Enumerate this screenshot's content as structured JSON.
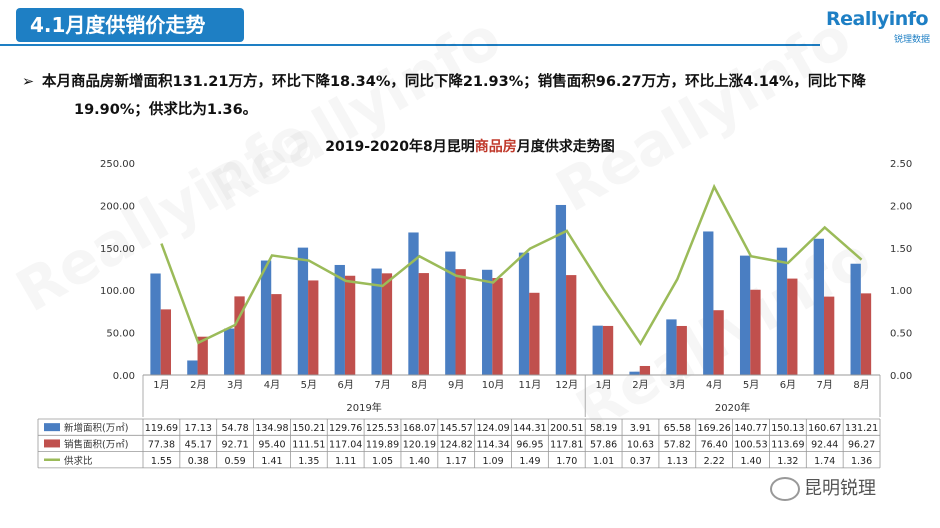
{
  "header": {
    "title": "4.1月度供销价走势"
  },
  "logo": {
    "name": "Reallyinfo",
    "sub": "锐理数据"
  },
  "summary": {
    "line1": "本月商品房新增面积131.21万方，环比下降18.34%，同比下降21.93%；销售面积96.27万方，环比上涨4.14%，同比下降",
    "line2": "19.90%；供求比为1.36。"
  },
  "chart_title": {
    "prefix": "2019-2020年8月昆明",
    "highlight": "商品房",
    "suffix": "月度供求走势图"
  },
  "watermark": "Reallyinfo",
  "wechat_label": "昆明锐理",
  "colors": {
    "supply": "#4a7ec2",
    "sales": "#c0504d",
    "ratio": "#9bbb59",
    "accent": "#1e7fc4"
  },
  "chart_data": {
    "type": "bar",
    "categories": [
      "1月",
      "2月",
      "3月",
      "4月",
      "5月",
      "6月",
      "7月",
      "8月",
      "9月",
      "10月",
      "11月",
      "12月",
      "1月",
      "2月",
      "3月",
      "4月",
      "5月",
      "6月",
      "7月",
      "8月"
    ],
    "groups": [
      {
        "label": "2019年",
        "count": 12
      },
      {
        "label": "2020年",
        "count": 8
      }
    ],
    "series": [
      {
        "name": "新增面积(万㎡)",
        "type": "bar",
        "axis": "left",
        "values": [
          119.69,
          17.13,
          54.78,
          134.98,
          150.21,
          129.76,
          125.53,
          168.07,
          145.57,
          124.09,
          144.31,
          200.51,
          58.19,
          3.91,
          65.58,
          169.26,
          140.77,
          150.13,
          160.67,
          131.21
        ],
        "labels": [
          "119.69",
          "17.13",
          "54.78",
          "134.98",
          "150.21",
          "129.76",
          "125.53",
          "168.07",
          "145.57",
          "124.09",
          "144.31",
          "200.51",
          "58.19",
          "3.91",
          "65.58",
          "169.26",
          "140.77",
          "150.13",
          "160.67",
          "131.21"
        ]
      },
      {
        "name": "销售面积(万㎡)",
        "type": "bar",
        "axis": "left",
        "values": [
          77.38,
          45.17,
          92.71,
          95.4,
          111.51,
          117.04,
          119.89,
          120.19,
          124.82,
          114.34,
          96.95,
          117.81,
          57.86,
          10.63,
          57.82,
          76.4,
          100.53,
          113.69,
          92.44,
          96.27
        ],
        "labels": [
          "77.38",
          "45.17",
          "92.71",
          "95.40",
          "111.51",
          "117.04",
          "119.89",
          "120.19",
          "124.82",
          "114.34",
          "96.95",
          "117.81",
          "57.86",
          "10.63",
          "57.82",
          "76.40",
          "100.53",
          "113.69",
          "92.44",
          "96.27"
        ]
      },
      {
        "name": "供求比",
        "type": "line",
        "axis": "right",
        "values": [
          1.55,
          0.38,
          0.59,
          1.41,
          1.35,
          1.11,
          1.05,
          1.4,
          1.17,
          1.09,
          1.49,
          1.7,
          1.01,
          0.37,
          1.13,
          2.22,
          1.4,
          1.32,
          1.74,
          1.36
        ],
        "labels": [
          "1.55",
          "0.38",
          "0.59",
          "1.41",
          "1.35",
          "1.11",
          "1.05",
          "1.40",
          "1.17",
          "1.09",
          "1.49",
          "1.70",
          "1.01",
          "0.37",
          "1.13",
          "2.22",
          "1.40",
          "1.32",
          "1.74",
          "1.36"
        ]
      }
    ],
    "ylim": [
      0,
      250
    ],
    "y2lim": [
      0,
      2.5
    ],
    "yticks": [
      "0.00",
      "50.00",
      "100.00",
      "150.00",
      "200.00",
      "250.00"
    ],
    "y2ticks": [
      "0.00",
      "0.50",
      "1.00",
      "1.50",
      "2.00",
      "2.50"
    ],
    "grid": false,
    "legend": "data-table"
  }
}
